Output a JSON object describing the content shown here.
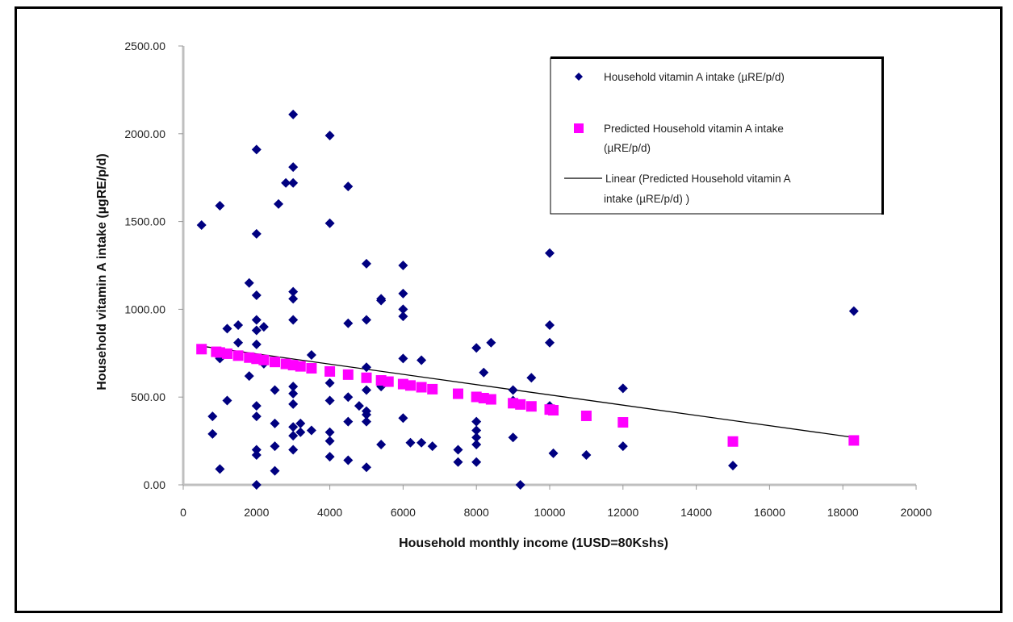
{
  "chart_data": {
    "type": "scatter",
    "title": "",
    "xlabel": "Household monthly income (1USD=80Kshs)",
    "ylabel": "Household vitamin A intake (µgRE/p/d)",
    "xlim": [
      0,
      20000
    ],
    "ylim": [
      0,
      2500
    ],
    "x_ticks": [
      "0",
      "2000",
      "4000",
      "6000",
      "8000",
      "10000",
      "12000",
      "14000",
      "16000",
      "18000",
      "20000"
    ],
    "y_ticks": [
      "0.00",
      "500.00",
      "1000.00",
      "1500.00",
      "2000.00",
      "2500.00"
    ],
    "grid": false,
    "legend_position": "top-right",
    "series": [
      {
        "name": "Household vitamin A intake (µRE/p/d)",
        "marker": "diamond",
        "color": "#000080",
        "points": [
          [
            500,
            1480
          ],
          [
            1000,
            1590
          ],
          [
            800,
            390
          ],
          [
            800,
            290
          ],
          [
            1000,
            90
          ],
          [
            1000,
            720
          ],
          [
            1200,
            890
          ],
          [
            1200,
            480
          ],
          [
            1500,
            910
          ],
          [
            1500,
            810
          ],
          [
            1800,
            1150
          ],
          [
            1800,
            620
          ],
          [
            2000,
            1910
          ],
          [
            2000,
            1430
          ],
          [
            2000,
            1080
          ],
          [
            2000,
            940
          ],
          [
            2000,
            880
          ],
          [
            2000,
            800
          ],
          [
            2000,
            450
          ],
          [
            2000,
            390
          ],
          [
            2000,
            200
          ],
          [
            2000,
            170
          ],
          [
            2000,
            0
          ],
          [
            2200,
            900
          ],
          [
            2200,
            690
          ],
          [
            2500,
            540
          ],
          [
            2500,
            350
          ],
          [
            2500,
            220
          ],
          [
            2500,
            80
          ],
          [
            2600,
            1600
          ],
          [
            2800,
            1720
          ],
          [
            3000,
            2110
          ],
          [
            3000,
            1810
          ],
          [
            3000,
            1720
          ],
          [
            3000,
            1100
          ],
          [
            3000,
            1060
          ],
          [
            3000,
            940
          ],
          [
            3000,
            560
          ],
          [
            3000,
            520
          ],
          [
            3000,
            460
          ],
          [
            3000,
            330
          ],
          [
            3000,
            280
          ],
          [
            3000,
            200
          ],
          [
            3200,
            350
          ],
          [
            3200,
            300
          ],
          [
            3500,
            740
          ],
          [
            3500,
            310
          ],
          [
            4000,
            1990
          ],
          [
            4000,
            1490
          ],
          [
            4000,
            580
          ],
          [
            4000,
            480
          ],
          [
            4000,
            300
          ],
          [
            4000,
            250
          ],
          [
            4000,
            160
          ],
          [
            4500,
            1700
          ],
          [
            4500,
            920
          ],
          [
            4500,
            500
          ],
          [
            4500,
            360
          ],
          [
            4500,
            140
          ],
          [
            4800,
            450
          ],
          [
            5000,
            1260
          ],
          [
            5000,
            940
          ],
          [
            5000,
            670
          ],
          [
            5000,
            540
          ],
          [
            5000,
            420
          ],
          [
            5000,
            400
          ],
          [
            5000,
            360
          ],
          [
            5000,
            100
          ],
          [
            5400,
            1060
          ],
          [
            5400,
            1050
          ],
          [
            5400,
            560
          ],
          [
            5400,
            230
          ],
          [
            6000,
            1250
          ],
          [
            6000,
            1090
          ],
          [
            6000,
            1000
          ],
          [
            6000,
            960
          ],
          [
            6000,
            720
          ],
          [
            6000,
            380
          ],
          [
            6200,
            240
          ],
          [
            6500,
            710
          ],
          [
            6500,
            240
          ],
          [
            6800,
            220
          ],
          [
            7500,
            200
          ],
          [
            7500,
            130
          ],
          [
            8000,
            780
          ],
          [
            8000,
            360
          ],
          [
            8000,
            310
          ],
          [
            8000,
            270
          ],
          [
            8000,
            230
          ],
          [
            8000,
            130
          ],
          [
            8200,
            640
          ],
          [
            8400,
            810
          ],
          [
            9000,
            540
          ],
          [
            9000,
            480
          ],
          [
            9000,
            270
          ],
          [
            9200,
            0
          ],
          [
            9500,
            610
          ],
          [
            10000,
            1320
          ],
          [
            10000,
            910
          ],
          [
            10000,
            810
          ],
          [
            10000,
            450
          ],
          [
            10100,
            180
          ],
          [
            11000,
            170
          ],
          [
            12000,
            550
          ],
          [
            12000,
            220
          ],
          [
            15000,
            110
          ],
          [
            18300,
            990
          ]
        ]
      },
      {
        "name": "Predicted Household vitamin A intake (µRE/p/d)",
        "marker": "square",
        "color": "#ff00ff",
        "points": [
          [
            500,
            773
          ],
          [
            900,
            758
          ],
          [
            1000,
            754
          ],
          [
            1200,
            747
          ],
          [
            1500,
            736
          ],
          [
            1800,
            725
          ],
          [
            2000,
            718
          ],
          [
            2200,
            711
          ],
          [
            2500,
            700
          ],
          [
            2800,
            689
          ],
          [
            3000,
            682
          ],
          [
            3200,
            675
          ],
          [
            3500,
            664
          ],
          [
            4000,
            646
          ],
          [
            4500,
            628
          ],
          [
            5000,
            610
          ],
          [
            5400,
            595
          ],
          [
            5600,
            588
          ],
          [
            6000,
            574
          ],
          [
            6200,
            566
          ],
          [
            6500,
            556
          ],
          [
            6800,
            545
          ],
          [
            7500,
            519
          ],
          [
            8000,
            501
          ],
          [
            8200,
            494
          ],
          [
            8400,
            487
          ],
          [
            9000,
            465
          ],
          [
            9200,
            458
          ],
          [
            9500,
            447
          ],
          [
            10000,
            429
          ],
          [
            10100,
            425
          ],
          [
            11000,
            393
          ],
          [
            12000,
            356
          ],
          [
            15000,
            247
          ],
          [
            18300,
            253
          ]
        ]
      },
      {
        "name": "Linear (Predicted Household vitamin A intake (µRE/p/d) )",
        "type": "line",
        "color": "#000000",
        "points": [
          [
            500,
            790
          ],
          [
            18300,
            270
          ]
        ]
      }
    ]
  }
}
